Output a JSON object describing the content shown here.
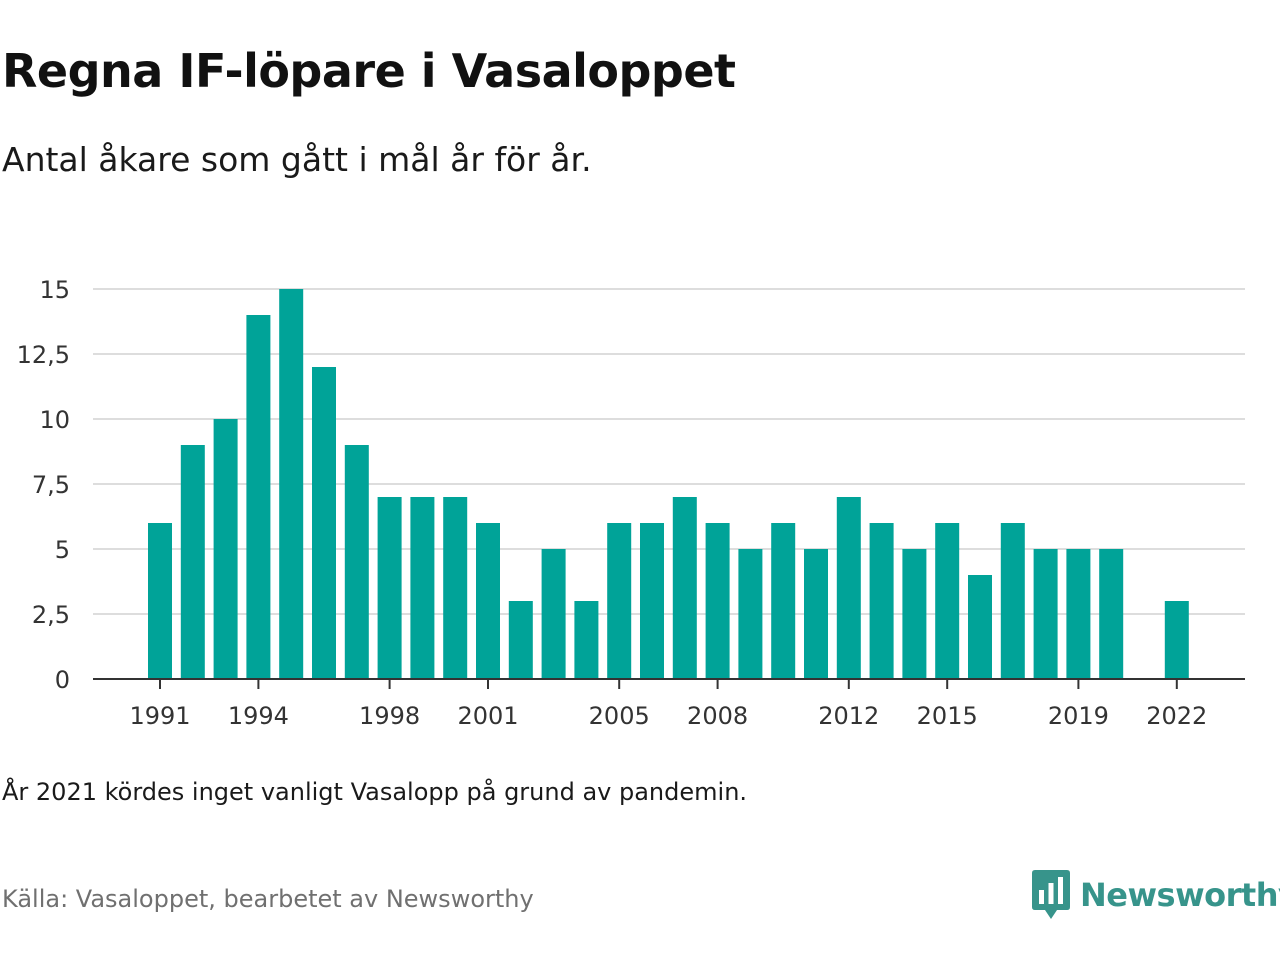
{
  "title": "Regna IF-löpare i Vasaloppet",
  "subtitle": "Antal åkare som gått i mål år för år.",
  "note": "År 2021 kördes inget vanligt Vasalopp på grund av pandemin.",
  "source": "Källa: Vasaloppet, bearbetet av Newsworthy",
  "logo": {
    "text": "Newsworthy",
    "icon": "chart-speech-bubble-icon"
  },
  "colors": {
    "bar": "#00a398",
    "grid": "#dddddd",
    "axis": "#333333",
    "brand": "#37948b"
  },
  "chart_data": {
    "type": "bar",
    "title": "Regna IF-löpare i Vasaloppet",
    "subtitle": "Antal åkare som gått i mål år för år.",
    "xlabel": "",
    "ylabel": "",
    "categories": [
      "1991",
      "1992",
      "1993",
      "1994",
      "1995",
      "1996",
      "1997",
      "1998",
      "1999",
      "2000",
      "2001",
      "2002",
      "2003",
      "2004",
      "2005",
      "2006",
      "2007",
      "2008",
      "2009",
      "2010",
      "2011",
      "2012",
      "2013",
      "2014",
      "2015",
      "2016",
      "2017",
      "2018",
      "2019",
      "2020",
      "2021",
      "2022"
    ],
    "values": [
      6,
      9,
      10,
      14,
      15,
      12,
      9,
      7,
      7,
      7,
      6,
      3,
      5,
      3,
      6,
      6,
      7,
      6,
      5,
      6,
      5,
      7,
      6,
      5,
      6,
      4,
      6,
      5,
      5,
      5,
      null,
      3
    ],
    "x_tick_labels": [
      "1991",
      "1994",
      "1998",
      "2001",
      "2005",
      "2008",
      "2012",
      "2015",
      "2019",
      "2022"
    ],
    "y_ticks": [
      0,
      2.5,
      5,
      7.5,
      10,
      12.5,
      15
    ],
    "y_tick_labels": [
      "0",
      "2,5",
      "5",
      "7,5",
      "10",
      "12,5",
      "15"
    ],
    "ylim": [
      0,
      15
    ],
    "grid": true,
    "legend": "none"
  }
}
